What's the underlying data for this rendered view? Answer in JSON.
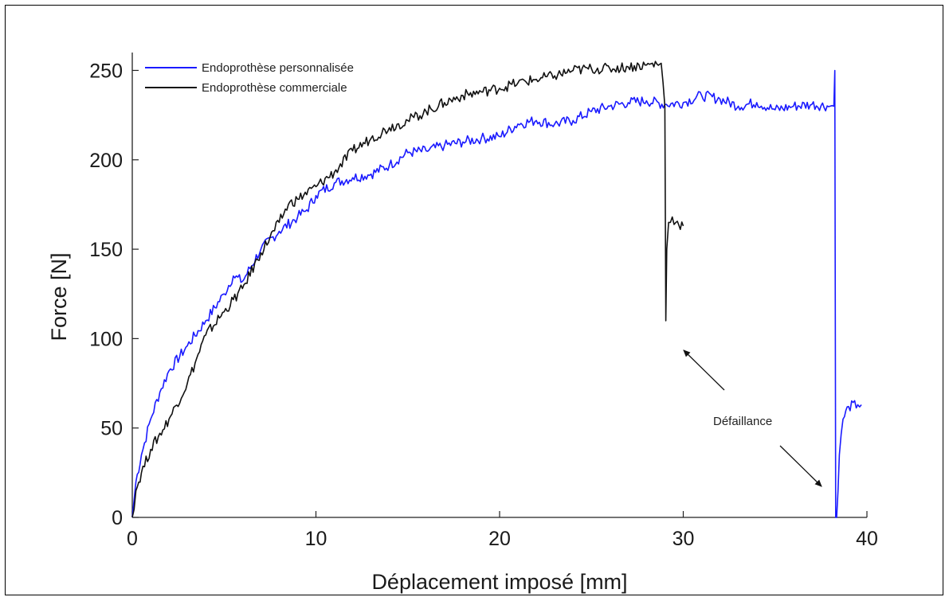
{
  "chart_data": {
    "type": "line",
    "xlabel": "Déplacement imposé [mm]",
    "ylabel": "Force [N]",
    "xlim": [
      0,
      40
    ],
    "ylim": [
      0,
      260
    ],
    "xticks": [
      0,
      10,
      20,
      30,
      40
    ],
    "yticks": [
      0,
      50,
      100,
      150,
      200,
      250
    ],
    "grid": false,
    "legend_position": "top-left",
    "series": [
      {
        "name": "Endoprothèse personnalisée",
        "color": "#1a1aff",
        "x": [
          0,
          0.2,
          0.5,
          1,
          1.5,
          2,
          3,
          4,
          5,
          5.5,
          6,
          7,
          8,
          9,
          9.5,
          10,
          11,
          12,
          13,
          14,
          15,
          16,
          17,
          18,
          19,
          20,
          21,
          22,
          23,
          24,
          25,
          26,
          27,
          28,
          29,
          30,
          31,
          32,
          33,
          34,
          35,
          36,
          37,
          38,
          38.2,
          38.25,
          38.3,
          38.35,
          38.5,
          38.7,
          39,
          39.5,
          39.7
        ],
        "y": [
          0,
          20,
          35,
          55,
          70,
          82,
          96,
          110,
          125,
          135,
          132,
          150,
          160,
          168,
          172,
          180,
          187,
          190,
          192,
          197,
          204,
          205,
          208,
          210,
          212,
          213,
          220,
          222,
          220,
          222,
          227,
          230,
          232,
          233,
          231,
          232,
          236,
          234,
          230,
          232,
          228,
          230,
          231,
          230,
          230,
          250,
          0,
          0,
          35,
          55,
          62,
          63,
          63
        ]
      },
      {
        "name": "Endoprothèse commerciale",
        "color": "#111111",
        "x": [
          0,
          0.2,
          0.5,
          1,
          2,
          3,
          4,
          5,
          6,
          7,
          8,
          8.5,
          9,
          10,
          11,
          12,
          13,
          14,
          15,
          16,
          17,
          18,
          19,
          20,
          21,
          22,
          23,
          24,
          25,
          26,
          27,
          28,
          28.8,
          29,
          29.05,
          29.1,
          29.2,
          29.4,
          29.6,
          30
        ],
        "y": [
          0,
          15,
          25,
          38,
          55,
          75,
          102,
          115,
          128,
          148,
          165,
          175,
          178,
          185,
          193,
          205,
          212,
          218,
          222,
          227,
          232,
          236,
          238,
          240,
          243,
          245,
          247,
          250,
          251,
          251,
          252,
          253,
          254,
          230,
          110,
          150,
          165,
          168,
          165,
          163
        ]
      }
    ],
    "annotations": [
      {
        "text": "Défaillance"
      }
    ]
  }
}
